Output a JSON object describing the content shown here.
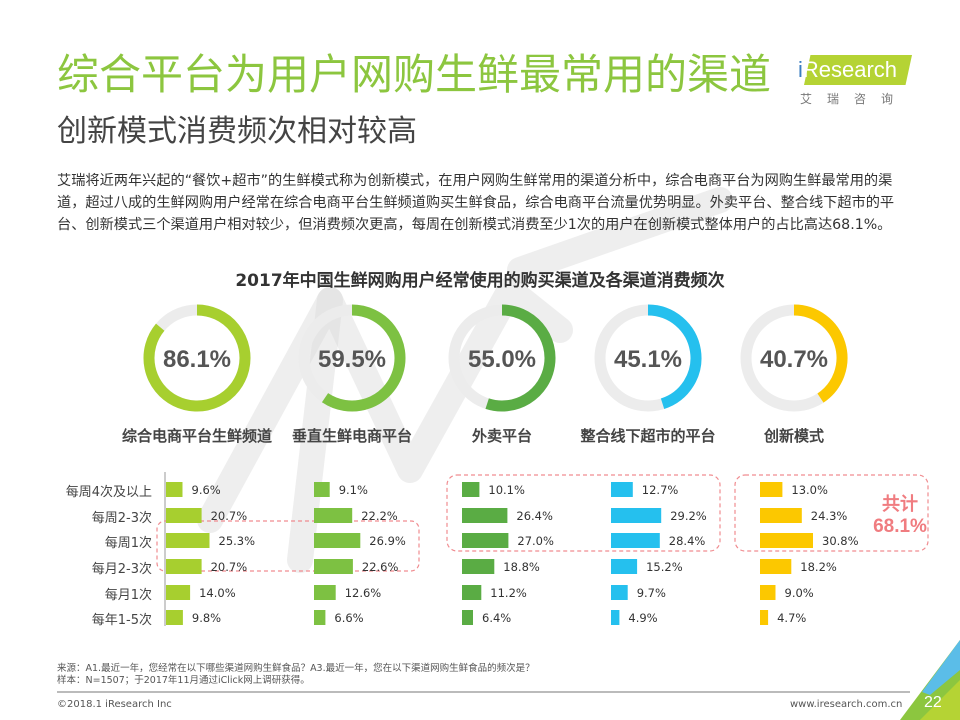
{
  "header": {
    "title": "综合平台为用户网购生鲜最常用的渠道",
    "subtitle": "创新模式消费频次相对较高"
  },
  "logo": {
    "brand_i": "i",
    "brand_rest": "Research",
    "chinese": "艾瑞咨询",
    "brand_color": "#b5d334"
  },
  "intro": "艾瑞将近两年兴起的“餐饮+超市”的生鲜模式称为创新模式，在用户网购生鲜常用的渠道分析中，综合电商平台为网购生鲜最常用的渠道，超过八成的生鲜网购用户经常在综合电商平台生鲜频道购买生鲜食品，综合电商平台流量优势明显。外卖平台、整合线下超市的平台、创新模式三个渠道用户相对较少，但消费频次更高，每周在创新模式消费至少1次的用户在创新模式整体用户的占比高达68.1%。",
  "chart_data": [
    {
      "type": "pie",
      "subtype": "donut",
      "title": "2017年中国生鲜网购用户经常使用的购买渠道及各渠道消费频次",
      "categories": [
        "综合电商平台生鲜频道",
        "垂直生鲜电商平台",
        "外卖平台",
        "整合线下超市的平台",
        "创新模式"
      ],
      "values": [
        86.1,
        59.5,
        55.0,
        45.1,
        40.7
      ],
      "labels": [
        "86.1%",
        "59.5%",
        "55.0%",
        "45.1%",
        "40.7%"
      ],
      "colors": [
        "#a7cf2f",
        "#7dc142",
        "#5aac44",
        "#25c0ee",
        "#fcc800"
      ],
      "track_color": "#ececec"
    },
    {
      "type": "bar",
      "orientation": "horizontal",
      "categories": [
        "每周4次及以上",
        "每周2-3次",
        "每周1次",
        "每月2-3次",
        "每月1次",
        "每年1-5次"
      ],
      "series": [
        {
          "name": "综合电商平台生鲜频道",
          "values": [
            9.6,
            20.7,
            25.3,
            20.7,
            14.0,
            9.8
          ],
          "labels": [
            "9.6%",
            "20.7%",
            "25.3%",
            "20.7%",
            "14.0%",
            "9.8%"
          ],
          "color": "#a7cf2f"
        },
        {
          "name": "垂直生鲜电商平台",
          "values": [
            9.1,
            22.2,
            26.9,
            22.6,
            12.6,
            6.6
          ],
          "labels": [
            "9.1%",
            "22.2%",
            "26.9%",
            "22.6%",
            "12.6%",
            "6.6%"
          ],
          "color": "#7dc142"
        },
        {
          "name": "外卖平台",
          "values": [
            10.1,
            26.4,
            27.0,
            18.8,
            11.2,
            6.4
          ],
          "labels": [
            "10.1%",
            "26.4%",
            "27.0%",
            "18.8%",
            "11.2%",
            "6.4%"
          ],
          "color": "#5aac44"
        },
        {
          "name": "整合线下超市的平台",
          "values": [
            12.7,
            29.2,
            28.4,
            15.2,
            9.7,
            4.9
          ],
          "labels": [
            "12.7%",
            "29.2%",
            "28.4%",
            "15.2%",
            "9.7%",
            "4.9%"
          ],
          "color": "#25c0ee"
        },
        {
          "name": "创新模式",
          "values": [
            13.0,
            24.3,
            30.8,
            18.2,
            9.0,
            4.7
          ],
          "labels": [
            "13.0%",
            "24.3%",
            "30.8%",
            "18.2%",
            "9.0%",
            "4.7%"
          ],
          "color": "#fcc800"
        }
      ],
      "annotation": {
        "line1": "共计",
        "line2": "68.1%",
        "color": "#f07c80"
      },
      "highlight_color": "#f08c90"
    }
  ],
  "footer": {
    "source": "来源：A1.最近一年，您经常在以下哪些渠道网购生鲜食品？A3.最近一年，您在以下渠道网购生鲜食品的频次是？",
    "sample": "样本：N=1507；于2017年11月通过iClick网上调研获得。",
    "copyright": "©2018.1 iResearch Inc",
    "website": "www.iresearch.com.cn",
    "page_number": "22"
  }
}
